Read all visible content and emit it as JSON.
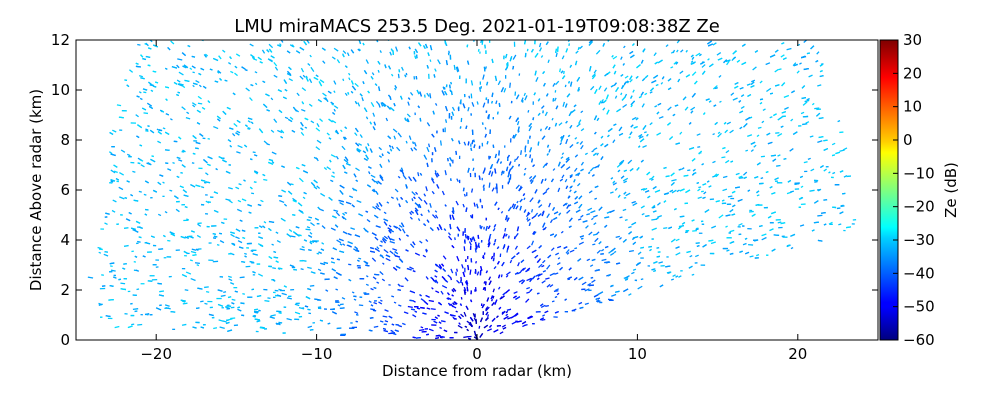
{
  "chart_data": {
    "type": "heatmap",
    "subtype": "rhi-scan",
    "title": "LMU miraMACS 253.5 Deg. 2021-01-19T09:08:38Z  Ze",
    "xlabel": "Distance from radar (km)",
    "ylabel": "Distance Above radar  (km)",
    "xlim": [
      -25,
      25
    ],
    "ylim": [
      0,
      12
    ],
    "xticks": [
      -20,
      -10,
      0,
      10,
      20
    ],
    "xtick_labels": [
      "−20",
      "−10",
      "0",
      "10",
      "20"
    ],
    "yticks": [
      0,
      2,
      4,
      6,
      8,
      10,
      12
    ],
    "ytick_labels": [
      "0",
      "2",
      "4",
      "6",
      "8",
      "10",
      "12"
    ],
    "grid": false,
    "colorbar": {
      "label": "Ze (dB)",
      "colormap": "jet",
      "range": [
        -60,
        30
      ],
      "ticks": [
        -60,
        -50,
        -40,
        -30,
        -20,
        -10,
        0,
        10,
        20,
        30
      ],
      "tick_labels": [
        "−60",
        "−50",
        "−40",
        "−30",
        "−20",
        "−10",
        "0",
        "10",
        "20",
        "30"
      ]
    },
    "scan": {
      "max_range_km": 24.2,
      "elevation_min_deg_right": 10.5,
      "elevation_min_deg_left": 1.2,
      "ze_near_radar_db": -55,
      "ze_far_range_db": -32
    }
  }
}
